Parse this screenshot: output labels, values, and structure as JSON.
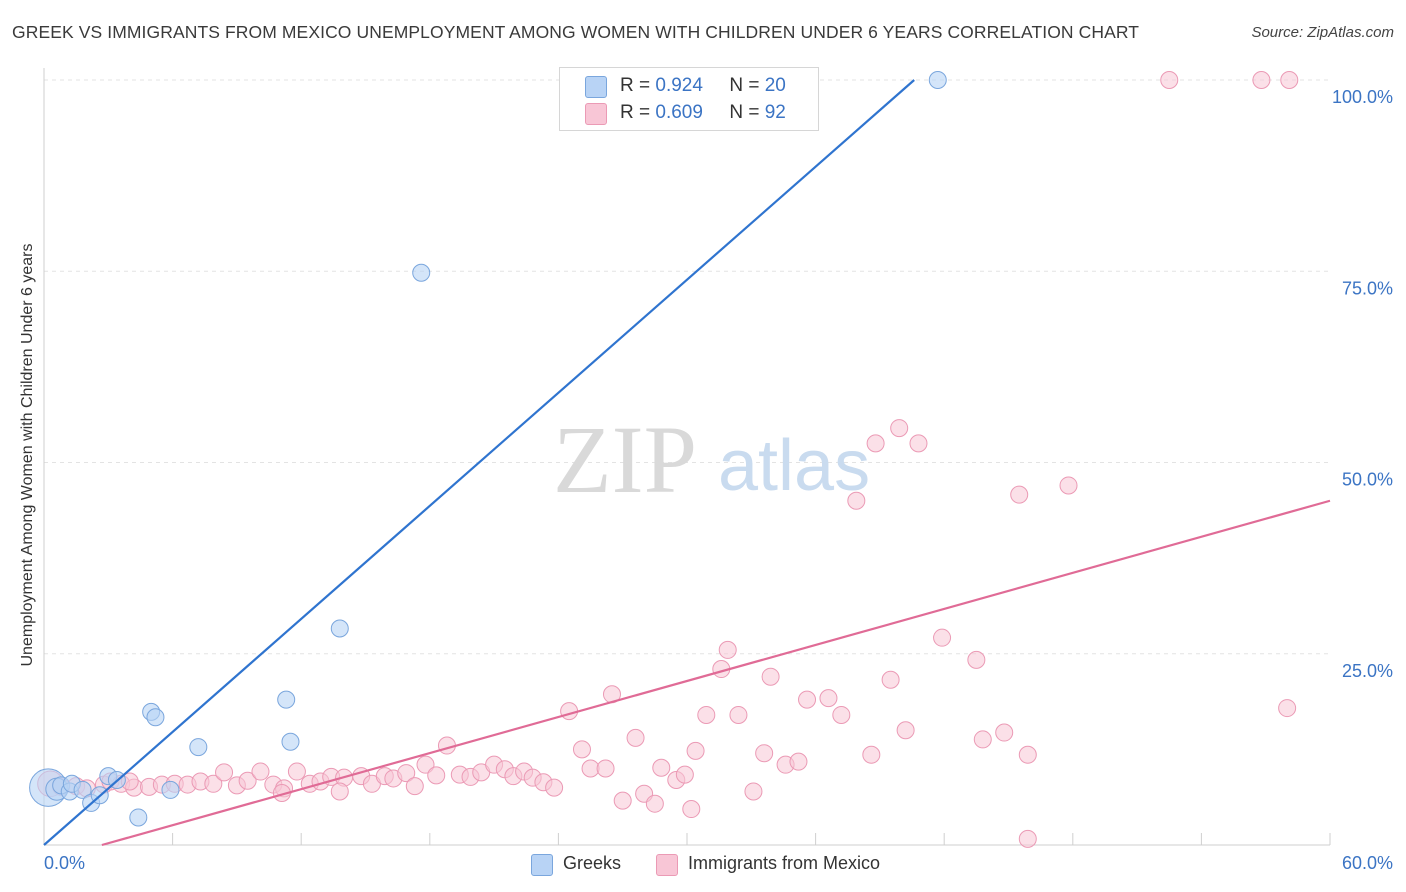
{
  "title": "GREEK VS IMMIGRANTS FROM MEXICO UNEMPLOYMENT AMONG WOMEN WITH CHILDREN UNDER 6 YEARS CORRELATION CHART",
  "source": "Source: ZipAtlas.com",
  "watermark": {
    "zip": "ZIP",
    "atlas": "atlas"
  },
  "colors": {
    "greek_fill": "#b8d3f5",
    "greek_stroke": "#7aa6dd",
    "greek_line": "#2f74cf",
    "mexico_fill": "#f8c6d6",
    "mexico_stroke": "#eb9ab5",
    "mexico_line": "#e06b96",
    "grid": "#e3e3e3",
    "tick_text": "#3b74c4"
  },
  "legend_top": [
    {
      "r_label": "R =",
      "r_value": "0.924",
      "n_label": "N =",
      "n_value": "20"
    },
    {
      "r_label": "R =",
      "r_value": "0.609",
      "n_label": "N =",
      "n_value": "92"
    }
  ],
  "legend_bottom": [
    "Greeks",
    "Immigrants from Mexico"
  ],
  "chart_data": {
    "type": "scatter",
    "title": "GREEK VS IMMIGRANTS FROM MEXICO UNEMPLOYMENT AMONG WOMEN WITH CHILDREN UNDER 6 YEARS CORRELATION CHART",
    "xlabel": "",
    "ylabel": "Unemployment Among Women with Children Under 6 years",
    "xlim": [
      0,
      60
    ],
    "ylim": [
      0,
      100
    ],
    "x_tick_labels": [
      "0.0%",
      "60.0%"
    ],
    "y_tick_labels": [
      "25.0%",
      "50.0%",
      "75.0%",
      "100.0%"
    ],
    "y_tick_values": [
      25,
      50,
      75,
      100
    ],
    "grid": true,
    "legend_position": "top-center",
    "series": [
      {
        "name": "Greeks",
        "r": 0.924,
        "n": 20,
        "trend": {
          "x": [
            0,
            40.6
          ],
          "y": [
            0,
            100
          ]
        },
        "points": [
          [
            0.2,
            7.5,
            2.2
          ],
          [
            0.6,
            7.3,
            1.3
          ],
          [
            0.8,
            7.8,
            1.0
          ],
          [
            1.2,
            7.0,
            1.0
          ],
          [
            1.3,
            8.0,
            1.0
          ],
          [
            1.8,
            7.2,
            1.0
          ],
          [
            2.2,
            5.5,
            1.0
          ],
          [
            2.6,
            6.5,
            1.0
          ],
          [
            3.0,
            9.0,
            1.0
          ],
          [
            3.4,
            8.5,
            1.0
          ],
          [
            4.4,
            3.6,
            1.0
          ],
          [
            5.0,
            17.4,
            1.0
          ],
          [
            5.2,
            16.7,
            1.0
          ],
          [
            5.9,
            7.2,
            1.0
          ],
          [
            7.2,
            12.8,
            1.0
          ],
          [
            11.3,
            19.0,
            1.0
          ],
          [
            11.5,
            13.5,
            1.0
          ],
          [
            13.8,
            28.3,
            1.0
          ],
          [
            17.6,
            74.8,
            1.0
          ],
          [
            41.7,
            100.0,
            1.0
          ]
        ]
      },
      {
        "name": "Immigrants from Mexico",
        "r": 0.609,
        "n": 92,
        "trend": {
          "x": [
            2.7,
            60
          ],
          "y": [
            0,
            45
          ]
        },
        "points": [
          [
            0.3,
            8.0,
            1.5
          ],
          [
            0.8,
            7.6,
            1.0
          ],
          [
            1.5,
            7.7,
            1.0
          ],
          [
            2.0,
            7.4,
            1.0
          ],
          [
            2.8,
            7.9,
            1.0
          ],
          [
            3.1,
            8.3,
            1.0
          ],
          [
            3.6,
            8.0,
            1.0
          ],
          [
            4.2,
            7.5,
            1.0
          ],
          [
            4.9,
            7.6,
            1.0
          ],
          [
            5.5,
            7.9,
            1.0
          ],
          [
            6.1,
            8.0,
            1.0
          ],
          [
            6.7,
            7.9,
            1.0
          ],
          [
            7.3,
            8.3,
            1.0
          ],
          [
            7.9,
            8.0,
            1.0
          ],
          [
            8.4,
            9.5,
            1.0
          ],
          [
            9.0,
            7.8,
            1.0
          ],
          [
            9.5,
            8.4,
            1.0
          ],
          [
            10.1,
            9.6,
            1.0
          ],
          [
            10.7,
            7.9,
            1.0
          ],
          [
            11.2,
            7.4,
            1.0
          ],
          [
            11.8,
            9.6,
            1.0
          ],
          [
            12.4,
            8.0,
            1.0
          ],
          [
            12.9,
            8.3,
            1.0
          ],
          [
            13.4,
            8.9,
            1.0
          ],
          [
            14.0,
            8.8,
            1.0
          ],
          [
            13.8,
            7.0,
            1.0
          ],
          [
            14.8,
            9.0,
            1.0
          ],
          [
            15.3,
            8.0,
            1.0
          ],
          [
            15.9,
            9.0,
            1.0
          ],
          [
            16.3,
            8.7,
            1.0
          ],
          [
            16.9,
            9.4,
            1.0
          ],
          [
            17.3,
            7.7,
            1.0
          ],
          [
            17.8,
            10.5,
            1.0
          ],
          [
            18.3,
            9.1,
            1.0
          ],
          [
            18.8,
            13.0,
            1.0
          ],
          [
            19.4,
            9.2,
            1.0
          ],
          [
            19.9,
            8.9,
            1.0
          ],
          [
            20.4,
            9.5,
            1.0
          ],
          [
            21.0,
            10.5,
            1.0
          ],
          [
            21.5,
            9.9,
            1.0
          ],
          [
            21.9,
            9.0,
            1.0
          ],
          [
            22.4,
            9.6,
            1.0
          ],
          [
            22.8,
            8.8,
            1.0
          ],
          [
            23.3,
            8.2,
            1.0
          ],
          [
            23.8,
            7.5,
            1.0
          ],
          [
            24.5,
            17.5,
            1.0
          ],
          [
            25.1,
            12.5,
            1.0
          ],
          [
            25.5,
            10.0,
            1.0
          ],
          [
            26.2,
            10.0,
            1.0
          ],
          [
            26.5,
            19.7,
            1.0
          ],
          [
            27.0,
            5.8,
            1.0
          ],
          [
            27.6,
            14.0,
            1.0
          ],
          [
            28.0,
            6.7,
            1.0
          ],
          [
            28.5,
            5.4,
            1.0
          ],
          [
            28.8,
            10.1,
            1.0
          ],
          [
            29.5,
            8.5,
            1.0
          ],
          [
            29.9,
            9.2,
            1.0
          ],
          [
            30.4,
            12.3,
            1.0
          ],
          [
            30.2,
            4.7,
            1.0
          ],
          [
            30.9,
            17.0,
            1.0
          ],
          [
            31.6,
            23.0,
            1.0
          ],
          [
            31.9,
            25.5,
            1.0
          ],
          [
            32.4,
            17.0,
            1.0
          ],
          [
            33.1,
            7.0,
            1.0
          ],
          [
            33.6,
            12.0,
            1.0
          ],
          [
            33.9,
            22.0,
            1.0
          ],
          [
            34.6,
            10.5,
            1.0
          ],
          [
            35.2,
            10.9,
            1.0
          ],
          [
            35.6,
            19.0,
            1.0
          ],
          [
            36.6,
            19.2,
            1.0
          ],
          [
            37.2,
            17.0,
            1.0
          ],
          [
            37.9,
            45.0,
            1.0
          ],
          [
            38.6,
            11.8,
            1.0
          ],
          [
            38.8,
            52.5,
            1.0
          ],
          [
            39.5,
            21.6,
            1.0
          ],
          [
            39.9,
            54.5,
            1.0
          ],
          [
            40.8,
            52.5,
            1.0
          ],
          [
            40.2,
            15.0,
            1.0
          ],
          [
            41.9,
            27.1,
            1.0
          ],
          [
            43.5,
            24.2,
            1.0
          ],
          [
            43.8,
            13.8,
            1.0
          ],
          [
            44.8,
            14.7,
            1.0
          ],
          [
            45.5,
            45.8,
            1.0
          ],
          [
            47.8,
            47.0,
            1.0
          ],
          [
            45.9,
            11.8,
            1.0
          ],
          [
            45.9,
            0.8,
            1.0
          ],
          [
            52.5,
            100.0,
            1.0
          ],
          [
            56.8,
            100.0,
            1.0
          ],
          [
            58.1,
            100.0,
            1.0
          ],
          [
            58.0,
            17.9,
            1.0
          ],
          [
            11.1,
            6.8,
            1.0
          ],
          [
            4.0,
            8.3,
            1.0
          ]
        ]
      }
    ]
  }
}
